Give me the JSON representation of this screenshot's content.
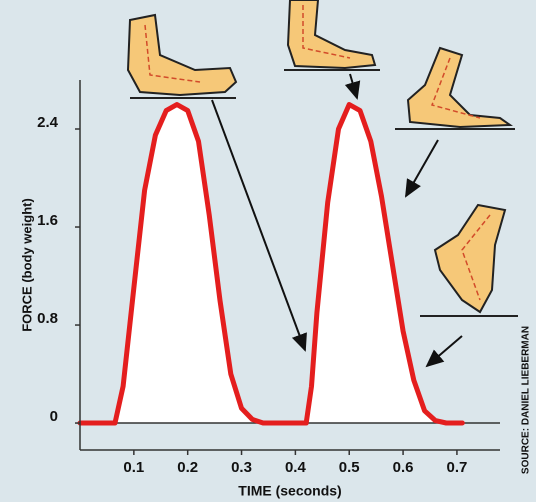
{
  "chart_data": {
    "type": "line",
    "x_label": "TIME (seconds)",
    "y_label": "FORCE (body weight)",
    "source": "SOURCE: DANIEL LIEBERMAN",
    "x": [
      0,
      0.065,
      0.08,
      0.1,
      0.12,
      0.14,
      0.16,
      0.18,
      0.2,
      0.22,
      0.24,
      0.26,
      0.28,
      0.3,
      0.32,
      0.34,
      0.42,
      0.43,
      0.44,
      0.46,
      0.48,
      0.5,
      0.52,
      0.54,
      0.56,
      0.58,
      0.6,
      0.62,
      0.64,
      0.66,
      0.68,
      0.71
    ],
    "series": [
      {
        "color": "#e41e1e",
        "values": [
          0,
          0,
          0.3,
          1.1,
          1.9,
          2.35,
          2.55,
          2.6,
          2.55,
          2.3,
          1.7,
          1.0,
          0.4,
          0.12,
          0.03,
          0,
          0,
          0.3,
          0.9,
          1.8,
          2.4,
          2.6,
          2.55,
          2.3,
          1.85,
          1.3,
          0.75,
          0.35,
          0.1,
          0.02,
          0,
          0
        ]
      }
    ],
    "xlim": [
      0,
      0.78
    ],
    "ylim": [
      -0.22,
      2.8
    ],
    "xticks": [
      0.1,
      0.2,
      0.3,
      0.4,
      0.5,
      0.6,
      0.7
    ],
    "yticks": [
      0,
      0.8,
      1.6,
      2.4
    ]
  }
}
